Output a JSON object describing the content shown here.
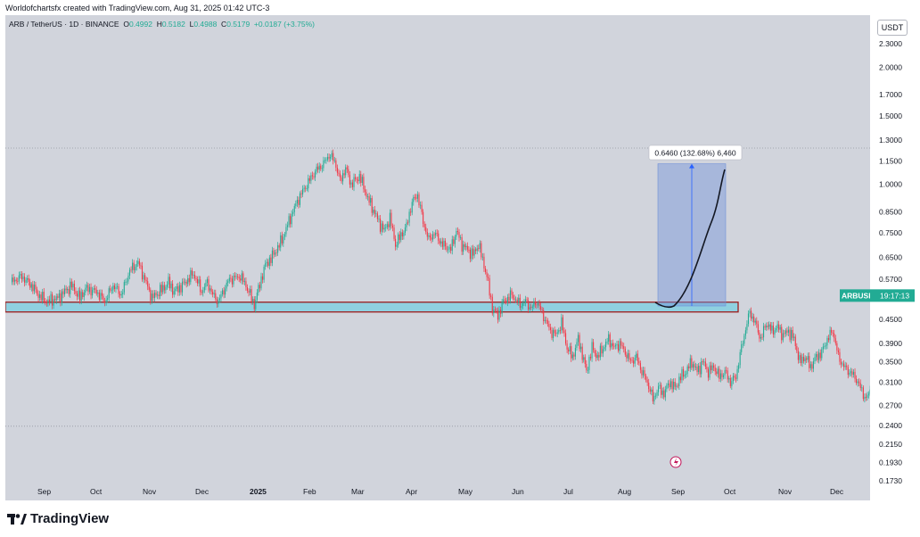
{
  "header": {
    "attribution": "Worldofchartsfx created with TradingView.com, Aug 31, 2025 01:42 UTC-3"
  },
  "symbol": {
    "name": "ARB / TetherUS · 1D · BINANCE",
    "o_label": "O",
    "o": "0.4992",
    "h_label": "H",
    "h": "0.5182",
    "l_label": "L",
    "l": "0.4988",
    "c_label": "C",
    "c": "0.5179",
    "change": "+0.0187 (+3.75%)"
  },
  "price_scale": {
    "currency": "USDT",
    "ticks": [
      "2.3000",
      "2.0000",
      "1.7000",
      "1.5000",
      "1.3000",
      "1.1500",
      "1.0000",
      "0.8500",
      "0.7500",
      "0.6500",
      "0.5700",
      "0.4500",
      "0.3900",
      "0.3500",
      "0.3100",
      "0.2700",
      "0.2400",
      "0.2150",
      "0.1930",
      "0.1730"
    ],
    "ticker_label": "ARBUSDT",
    "countdown": "19:17:13"
  },
  "time_scale": {
    "labels": [
      "Sep",
      "Oct",
      "Nov",
      "Dec",
      "2025",
      "Feb",
      "Mar",
      "Apr",
      "May",
      "Jun",
      "Jul",
      "Aug",
      "Sep",
      "Oct",
      "Nov",
      "Dec"
    ]
  },
  "annotation": {
    "measure_label": "0.6460 (132.68%) 6,460"
  },
  "brand": {
    "name": "TradingView"
  },
  "colors": {
    "up": "#22ab94",
    "down": "#f23645",
    "zone_fill": "#8fd0e0",
    "zone_border": "#9b1c1c",
    "projection": "#6e8fd8"
  }
}
